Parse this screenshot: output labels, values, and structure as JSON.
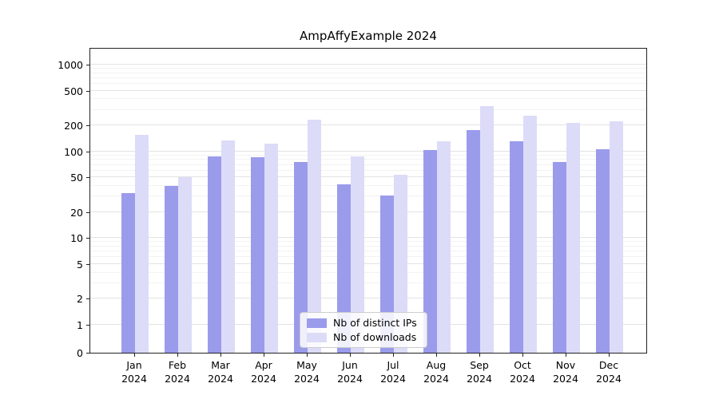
{
  "chart_data": {
    "type": "bar",
    "title": "AmpAffyExample 2024",
    "categories": [
      "Jan",
      "Feb",
      "Mar",
      "Apr",
      "May",
      "Jun",
      "Jul",
      "Aug",
      "Sep",
      "Oct",
      "Nov",
      "Dec"
    ],
    "year": "2024",
    "series": [
      {
        "name": "Nb of distinct IPs",
        "color": "#9b9bec",
        "values": [
          33,
          40,
          88,
          85,
          75,
          42,
          31,
          103,
          175,
          130,
          76,
          105
        ]
      },
      {
        "name": "Nb of downloads",
        "color": "#dcdcf8",
        "values": [
          155,
          50,
          133,
          122,
          230,
          88,
          54,
          130,
          330,
          255,
          215,
          220
        ]
      }
    ],
    "y_axis": {
      "scale": "symlog",
      "ticks": [
        0,
        1,
        2,
        5,
        10,
        20,
        50,
        100,
        200,
        500,
        1000
      ],
      "range": [
        0,
        1600
      ]
    },
    "x_axis": {
      "label_lines": 2
    },
    "legend": {
      "position": "bottom-center-inside"
    },
    "grid": true
  }
}
